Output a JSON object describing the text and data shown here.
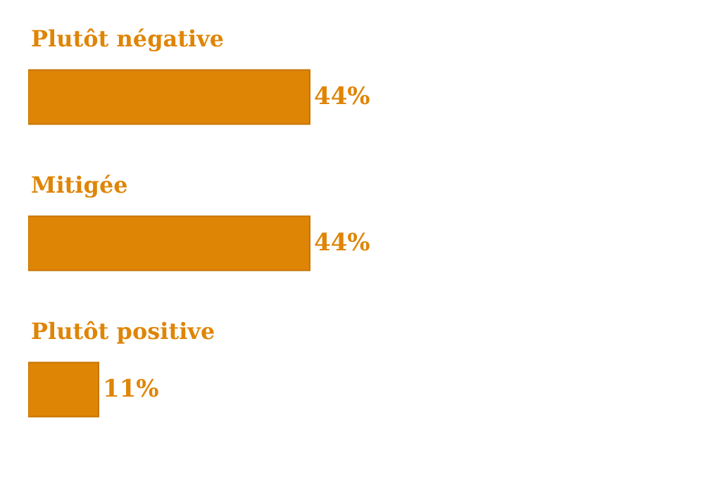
{
  "chart_data": {
    "type": "bar",
    "orientation": "horizontal",
    "categories": [
      "Plutôt négative",
      "Mitigée",
      "Plutôt positive"
    ],
    "values": [
      44,
      44,
      11
    ],
    "value_labels": [
      "44%",
      "44%",
      "11%"
    ],
    "color": "#df8506"
  }
}
